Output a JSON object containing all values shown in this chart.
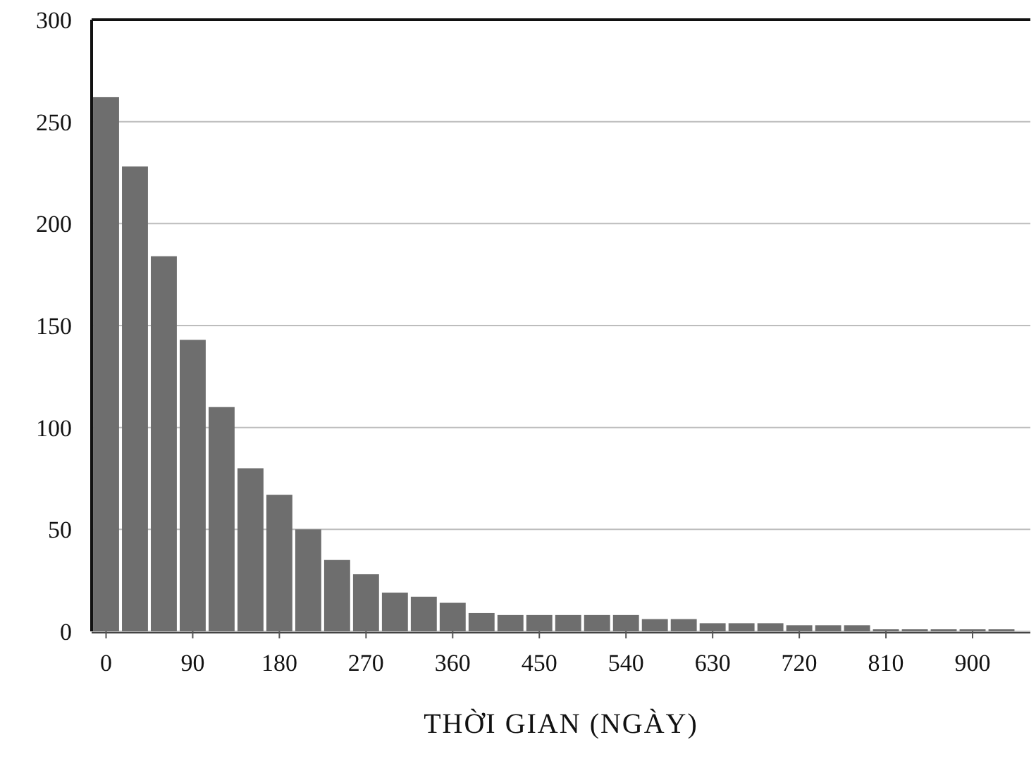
{
  "chart_data": {
    "type": "bar",
    "xlabel": "THỜI GIAN (NGÀY)",
    "x": [
      0,
      30,
      60,
      90,
      120,
      150,
      180,
      210,
      240,
      270,
      300,
      330,
      360,
      390,
      420,
      450,
      480,
      510,
      540,
      570,
      600,
      630,
      660,
      690,
      720,
      750,
      780,
      810,
      840,
      870,
      900,
      930
    ],
    "values": [
      262,
      228,
      184,
      143,
      110,
      80,
      67,
      50,
      35,
      28,
      19,
      17,
      14,
      9,
      8,
      8,
      8,
      8,
      8,
      6,
      6,
      4,
      4,
      4,
      3,
      3,
      3,
      1,
      1,
      1,
      1,
      1
    ],
    "color": "#6e6e6e",
    "xlim": [
      -15,
      960
    ],
    "xticks": [
      0,
      90,
      180,
      270,
      360,
      450,
      540,
      630,
      720,
      810,
      900
    ],
    "ylim": [
      0,
      300
    ],
    "yticks": [
      0,
      50,
      100,
      150,
      200,
      250,
      300
    ],
    "grid": "y"
  }
}
